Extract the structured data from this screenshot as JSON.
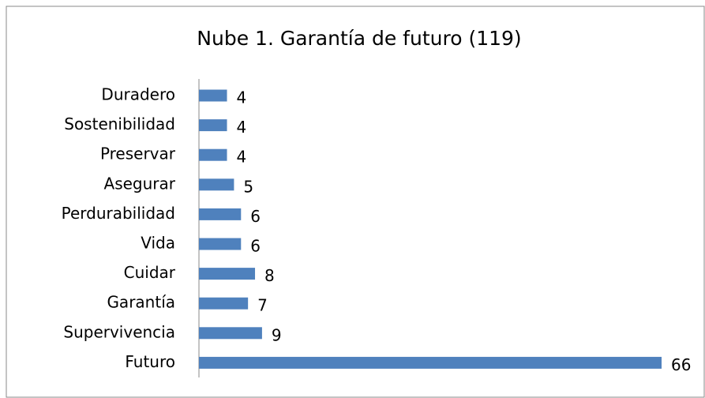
{
  "chart_data": {
    "type": "bar",
    "orientation": "horizontal",
    "title": "Nube 1. Garantía de futuro (119)",
    "categories": [
      "Duradero",
      "Sostenibilidad",
      "Preservar",
      "Asegurar",
      "Perdurabilidad",
      "Vida",
      "Cuidar",
      "Garantía",
      "Supervivencia",
      "Futuro"
    ],
    "values": [
      4,
      4,
      4,
      5,
      6,
      6,
      8,
      7,
      9,
      66
    ],
    "color": "#4f81bd",
    "xlim": [
      0,
      66
    ]
  }
}
